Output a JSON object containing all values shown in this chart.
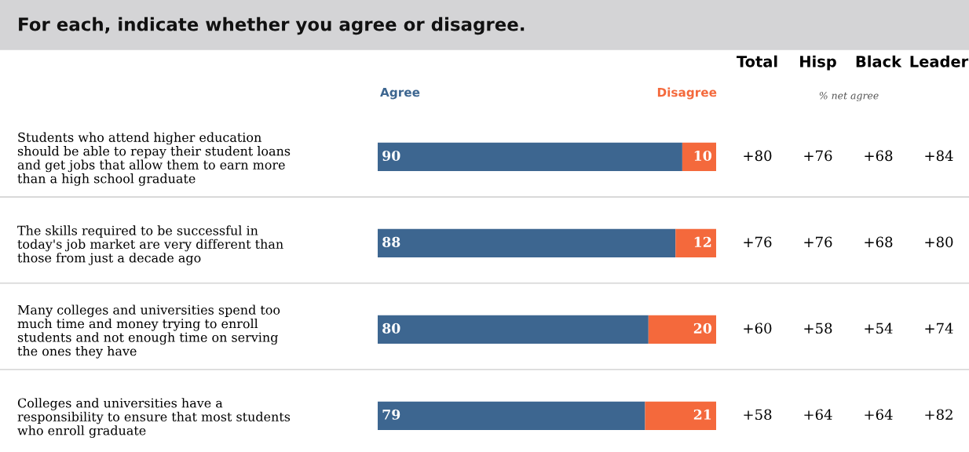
{
  "chart_data": [
    {
      "type": "bar",
      "orientation": "horizontal",
      "stacked": true,
      "title": "For each, indicate whether you agree or disagree.",
      "categories": [
        "Students who attend higher education\nshould be able to repay their student loans\nand get jobs that allow them to earn more\nthan a high school graduate",
        "The skills required to be successful in\ntoday's job market are very different than\nthose from just a decade ago",
        "Many colleges and universities spend too\nmuch time and money trying to enroll\nstudents and not enough time on serving\nthe ones they have",
        "Colleges and universities have a\nresponsibility to ensure that most students\nwho enroll graduate"
      ],
      "series": [
        {
          "name": "Agree",
          "color": "#3d6690",
          "values": [
            90,
            88,
            80,
            79
          ]
        },
        {
          "name": "Disagree",
          "color": "#f4693c",
          "values": [
            10,
            12,
            20,
            21
          ]
        }
      ],
      "xlim": [
        0,
        100
      ],
      "tick_labels": "y",
      "data_labels": true,
      "legend": "top",
      "grid": false
    },
    {
      "type": "other",
      "subtitle": "% net agree",
      "categories": [
        "Total",
        "Hisp",
        "Black",
        "Leader"
      ],
      "annotations": [
        "+80",
        "+76",
        "+68",
        "+84",
        "+76",
        "+76",
        "+68",
        "+80",
        "+60",
        "+58",
        "+54",
        "+74",
        "+58",
        "+64",
        "+64",
        "+82"
      ]
    }
  ]
}
